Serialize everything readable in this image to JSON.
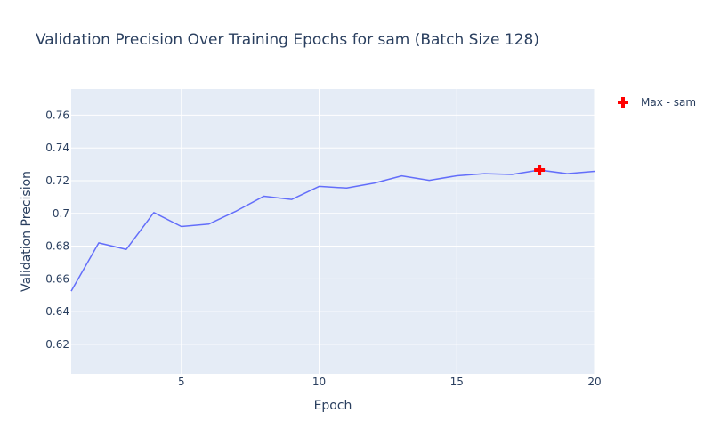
{
  "chart_data": {
    "type": "line",
    "title": "Validation Precision Over Training Epochs for sam (Batch Size 128)",
    "xlabel": "Epoch",
    "ylabel": "Validation Precision",
    "xlim": [
      1,
      20
    ],
    "ylim": [
      0.602,
      0.776
    ],
    "x_ticks": [
      5,
      10,
      15,
      20
    ],
    "y_ticks": [
      0.62,
      0.64,
      0.66,
      0.68,
      0.7,
      0.72,
      0.74,
      0.76
    ],
    "y_tick_labels": [
      "0.62",
      "0.64",
      "0.66",
      "0.68",
      "0.7",
      "0.72",
      "0.74",
      "0.76"
    ],
    "grid": true,
    "legend_position": "top-right",
    "series": [
      {
        "name": "",
        "color": "#636efa",
        "x": [
          1,
          2,
          3,
          4,
          5,
          6,
          7,
          8,
          9,
          10,
          11,
          12,
          13,
          14,
          15,
          16,
          17,
          18,
          19,
          20
        ],
        "y": [
          0.6525,
          0.682,
          0.678,
          0.7005,
          0.692,
          0.6935,
          0.7015,
          0.7105,
          0.7085,
          0.7165,
          0.7155,
          0.7185,
          0.7229,
          0.7202,
          0.723,
          0.7243,
          0.7238,
          0.7265,
          0.7243,
          0.7257
        ]
      }
    ],
    "marker": {
      "name": "Max - sam",
      "x": 18,
      "y": 0.7265,
      "color": "#ff0000",
      "symbol": "cross"
    }
  }
}
